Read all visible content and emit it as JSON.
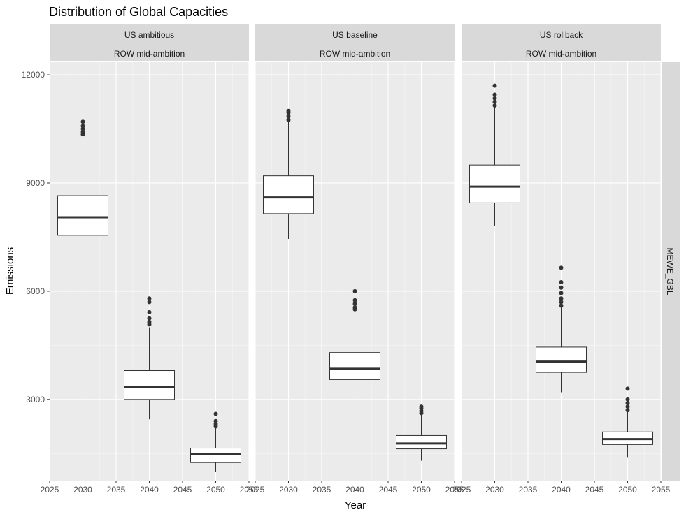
{
  "chart_data": {
    "type": "boxplot",
    "title": "Distribution of Global Capacities",
    "xlabel": "Year",
    "ylabel": "Emissions",
    "row_facet_label": "MEWE_GBL",
    "x_ticks": [
      "2025",
      "2030",
      "2035",
      "2040",
      "2045",
      "2050",
      "2055"
    ],
    "x_lim": [
      2025,
      2055
    ],
    "y_ticks": [
      "3000",
      "6000",
      "9000",
      "12000"
    ],
    "y_lim": [
      750,
      12350
    ],
    "grid": true,
    "panels": [
      {
        "strip_line1": "US ambitious",
        "strip_line2": "ROW mid-ambition",
        "boxes": [
          {
            "x": 2030,
            "lower_whisker": 6850,
            "q1": 7550,
            "median": 8050,
            "q3": 8650,
            "upper_whisker": 10300,
            "outliers": [
              10350,
              10420,
              10500,
              10580,
              10700
            ]
          },
          {
            "x": 2040,
            "lower_whisker": 2450,
            "q1": 3000,
            "median": 3350,
            "q3": 3800,
            "upper_whisker": 5000,
            "outliers": [
              5080,
              5150,
              5250,
              5420,
              5700,
              5800
            ]
          },
          {
            "x": 2050,
            "lower_whisker": 1000,
            "q1": 1250,
            "median": 1480,
            "q3": 1650,
            "upper_whisker": 2200,
            "outliers": [
              2250,
              2320,
              2400,
              2600
            ]
          }
        ]
      },
      {
        "strip_line1": "US baseline",
        "strip_line2": "ROW mid-ambition",
        "boxes": [
          {
            "x": 2030,
            "lower_whisker": 7450,
            "q1": 8150,
            "median": 8600,
            "q3": 9200,
            "upper_whisker": 10700,
            "outliers": [
              10750,
              10850,
              10950,
              11000
            ]
          },
          {
            "x": 2040,
            "lower_whisker": 3050,
            "q1": 3550,
            "median": 3850,
            "q3": 4300,
            "upper_whisker": 5450,
            "outliers": [
              5500,
              5550,
              5650,
              5750,
              6000
            ]
          },
          {
            "x": 2050,
            "lower_whisker": 1300,
            "q1": 1630,
            "median": 1780,
            "q3": 2000,
            "upper_whisker": 2580,
            "outliers": [
              2620,
              2680,
              2750,
              2800
            ]
          }
        ]
      },
      {
        "strip_line1": "US rollback",
        "strip_line2": "ROW mid-ambition",
        "boxes": [
          {
            "x": 2030,
            "lower_whisker": 7800,
            "q1": 8450,
            "median": 8900,
            "q3": 9500,
            "upper_whisker": 11100,
            "outliers": [
              11150,
              11250,
              11350,
              11450,
              11700
            ]
          },
          {
            "x": 2040,
            "lower_whisker": 3200,
            "q1": 3750,
            "median": 4050,
            "q3": 4450,
            "upper_whisker": 5550,
            "outliers": [
              5600,
              5700,
              5800,
              5950,
              6100,
              6250,
              6650
            ]
          },
          {
            "x": 2050,
            "lower_whisker": 1400,
            "q1": 1750,
            "median": 1900,
            "q3": 2100,
            "upper_whisker": 2650,
            "outliers": [
              2700,
              2800,
              2900,
              3000,
              3300
            ]
          }
        ]
      }
    ]
  }
}
